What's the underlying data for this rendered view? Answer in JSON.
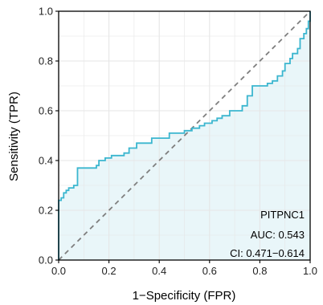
{
  "chart_data": {
    "type": "line",
    "title": "",
    "xlabel": "1−Specificity (FPR)",
    "ylabel": "Sensitivity (TPR)",
    "xlim": [
      0,
      1
    ],
    "ylim": [
      0,
      1
    ],
    "x_ticks": [
      "0.0",
      "0.2",
      "0.4",
      "0.6",
      "0.8",
      "1.0"
    ],
    "y_ticks": [
      "0.0",
      "0.2",
      "0.4",
      "0.6",
      "0.8",
      "1.0"
    ],
    "grid": true,
    "colors": {
      "roc_line": "#3bb6cf",
      "roc_fill": "#e9f6f9",
      "diagonal": "#7f7f7f",
      "grid": "#e6e6e6",
      "axis": "#000000"
    },
    "annotations": [
      "PITPNC1",
      "AUC: 0.543",
      "CI: 0.471−0.614"
    ],
    "series": [
      {
        "values": [
          [
            0.0,
            0.0
          ],
          [
            0.0,
            0.24
          ],
          [
            0.01,
            0.24
          ],
          [
            0.01,
            0.25
          ],
          [
            0.02,
            0.25
          ],
          [
            0.02,
            0.27
          ],
          [
            0.03,
            0.27
          ],
          [
            0.03,
            0.28
          ],
          [
            0.04,
            0.28
          ],
          [
            0.04,
            0.29
          ],
          [
            0.06,
            0.29
          ],
          [
            0.06,
            0.3
          ],
          [
            0.075,
            0.3
          ],
          [
            0.075,
            0.37
          ],
          [
            0.15,
            0.37
          ],
          [
            0.15,
            0.38
          ],
          [
            0.16,
            0.38
          ],
          [
            0.16,
            0.4
          ],
          [
            0.185,
            0.4
          ],
          [
            0.185,
            0.41
          ],
          [
            0.21,
            0.41
          ],
          [
            0.21,
            0.42
          ],
          [
            0.26,
            0.42
          ],
          [
            0.26,
            0.43
          ],
          [
            0.28,
            0.43
          ],
          [
            0.28,
            0.45
          ],
          [
            0.31,
            0.45
          ],
          [
            0.31,
            0.47
          ],
          [
            0.37,
            0.47
          ],
          [
            0.37,
            0.49
          ],
          [
            0.44,
            0.49
          ],
          [
            0.44,
            0.51
          ],
          [
            0.5,
            0.51
          ],
          [
            0.5,
            0.52
          ],
          [
            0.53,
            0.52
          ],
          [
            0.53,
            0.53
          ],
          [
            0.56,
            0.53
          ],
          [
            0.56,
            0.54
          ],
          [
            0.58,
            0.54
          ],
          [
            0.58,
            0.55
          ],
          [
            0.61,
            0.55
          ],
          [
            0.61,
            0.56
          ],
          [
            0.63,
            0.56
          ],
          [
            0.63,
            0.57
          ],
          [
            0.65,
            0.57
          ],
          [
            0.65,
            0.58
          ],
          [
            0.68,
            0.58
          ],
          [
            0.68,
            0.6
          ],
          [
            0.73,
            0.6
          ],
          [
            0.73,
            0.62
          ],
          [
            0.75,
            0.62
          ],
          [
            0.75,
            0.66
          ],
          [
            0.77,
            0.66
          ],
          [
            0.77,
            0.7
          ],
          [
            0.83,
            0.7
          ],
          [
            0.83,
            0.71
          ],
          [
            0.85,
            0.71
          ],
          [
            0.85,
            0.72
          ],
          [
            0.87,
            0.72
          ],
          [
            0.87,
            0.74
          ],
          [
            0.89,
            0.74
          ],
          [
            0.89,
            0.76
          ],
          [
            0.9,
            0.76
          ],
          [
            0.9,
            0.79
          ],
          [
            0.92,
            0.79
          ],
          [
            0.92,
            0.81
          ],
          [
            0.93,
            0.81
          ],
          [
            0.93,
            0.83
          ],
          [
            0.95,
            0.83
          ],
          [
            0.95,
            0.85
          ],
          [
            0.96,
            0.85
          ],
          [
            0.96,
            0.89
          ],
          [
            0.975,
            0.89
          ],
          [
            0.975,
            0.91
          ],
          [
            0.985,
            0.91
          ],
          [
            0.985,
            0.93
          ],
          [
            0.993,
            0.93
          ],
          [
            0.993,
            0.96
          ],
          [
            1.0,
            0.96
          ],
          [
            1.0,
            1.0
          ]
        ]
      }
    ]
  }
}
